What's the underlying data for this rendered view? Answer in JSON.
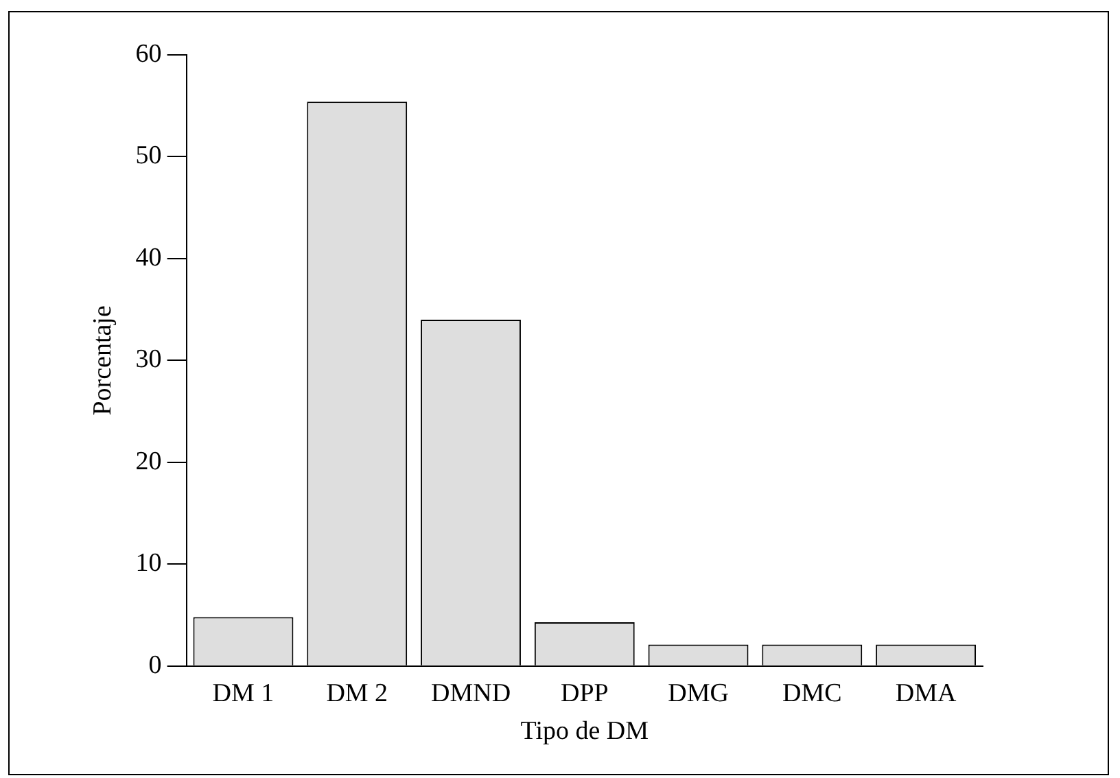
{
  "chart_data": {
    "type": "bar",
    "xlabel": "Tipo de DM",
    "ylabel": "Porcentaje",
    "categories": [
      "DM 1",
      "DM 2",
      "DMND",
      "DPP",
      "DMG",
      "DMC",
      "DMA"
    ],
    "values": [
      4.8,
      55.4,
      34.0,
      4.3,
      2.1,
      2.1,
      2.1
    ],
    "color": "#dedede",
    "ylim": [
      0,
      60
    ],
    "yticks": [
      0,
      10,
      20,
      30,
      40,
      50,
      60
    ],
    "grid": false,
    "legend": false
  }
}
